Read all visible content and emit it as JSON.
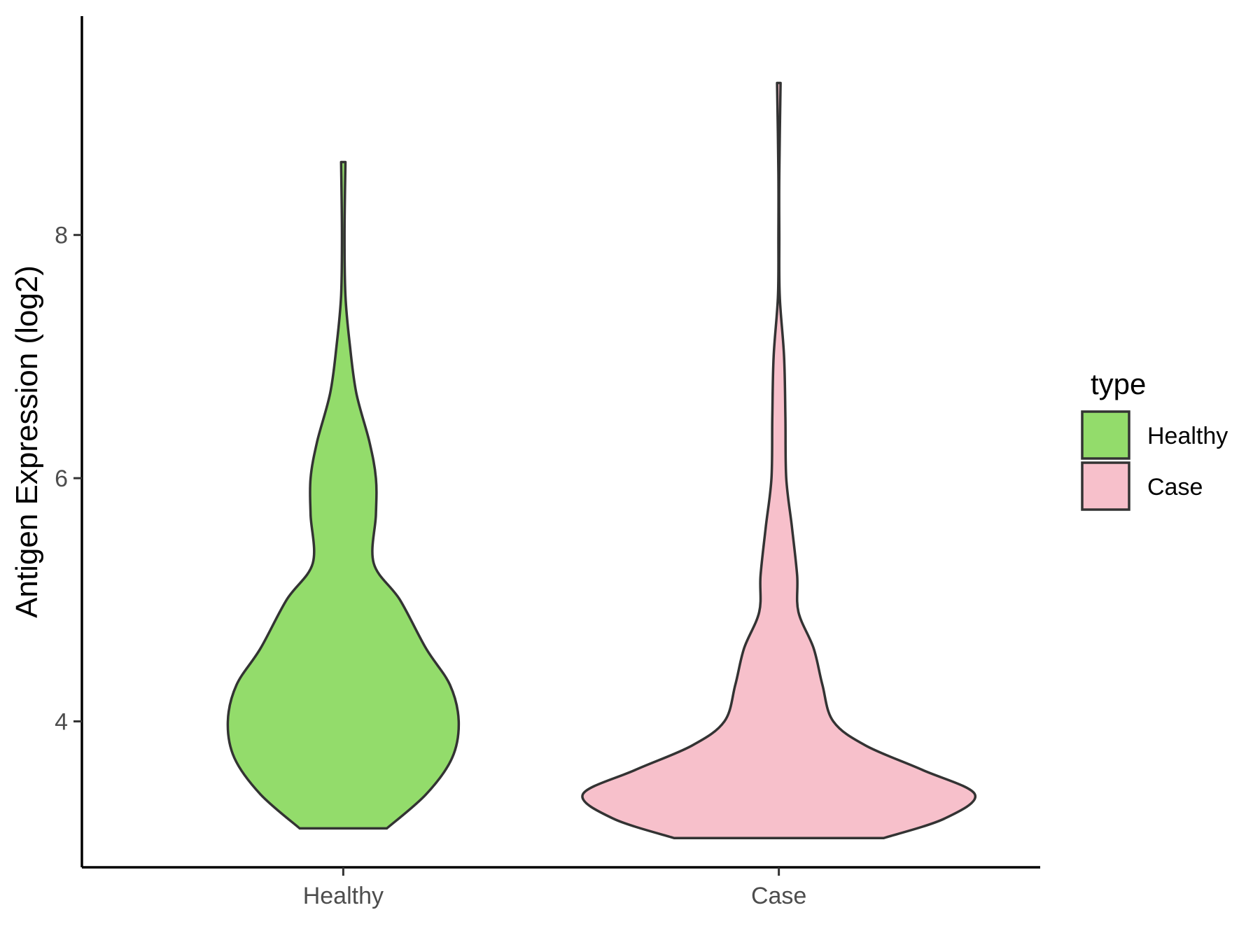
{
  "chart_data": {
    "type": "violin",
    "ylabel": "Antigen Expression (log2)",
    "xlabel": "",
    "categories": [
      "Healthy",
      "Case"
    ],
    "y_ticks": [
      "4",
      "6",
      "8"
    ],
    "ylim": [
      2.8,
      9.8
    ],
    "grid": false,
    "legend": {
      "title": "type",
      "position": "right",
      "entries": [
        {
          "label": "Healthy",
          "color": "#93dc6b"
        },
        {
          "label": "Case",
          "color": "#f7c0cb"
        }
      ]
    },
    "series": [
      {
        "name": "Healthy",
        "color": "#93dc6b",
        "y_min": 3.12,
        "y_max": 8.6,
        "density_profile": [
          {
            "y": 3.12,
            "half_width": 0.1
          },
          {
            "y": 3.4,
            "half_width": 0.19
          },
          {
            "y": 3.7,
            "half_width": 0.25
          },
          {
            "y": 4.0,
            "half_width": 0.265
          },
          {
            "y": 4.3,
            "half_width": 0.245
          },
          {
            "y": 4.6,
            "half_width": 0.19
          },
          {
            "y": 5.0,
            "half_width": 0.13
          },
          {
            "y": 5.3,
            "half_width": 0.07
          },
          {
            "y": 5.7,
            "half_width": 0.075
          },
          {
            "y": 6.0,
            "half_width": 0.075
          },
          {
            "y": 6.3,
            "half_width": 0.06
          },
          {
            "y": 6.7,
            "half_width": 0.03
          },
          {
            "y": 7.1,
            "half_width": 0.015
          },
          {
            "y": 7.5,
            "half_width": 0.005
          },
          {
            "y": 8.0,
            "half_width": 0.003
          },
          {
            "y": 8.6,
            "half_width": 0.005
          }
        ]
      },
      {
        "name": "Case",
        "color": "#f7c0cb",
        "y_min": 3.04,
        "y_max": 9.25,
        "density_profile": [
          {
            "y": 3.04,
            "half_width": 0.24
          },
          {
            "y": 3.2,
            "half_width": 0.38
          },
          {
            "y": 3.4,
            "half_width": 0.45
          },
          {
            "y": 3.6,
            "half_width": 0.33
          },
          {
            "y": 3.8,
            "half_width": 0.2
          },
          {
            "y": 4.0,
            "half_width": 0.125
          },
          {
            "y": 4.3,
            "half_width": 0.1
          },
          {
            "y": 4.6,
            "half_width": 0.08
          },
          {
            "y": 4.9,
            "half_width": 0.045
          },
          {
            "y": 5.2,
            "half_width": 0.042
          },
          {
            "y": 5.6,
            "half_width": 0.03
          },
          {
            "y": 6.0,
            "half_width": 0.017
          },
          {
            "y": 6.5,
            "half_width": 0.015
          },
          {
            "y": 7.0,
            "half_width": 0.012
          },
          {
            "y": 7.5,
            "half_width": 0.002
          },
          {
            "y": 8.0,
            "half_width": 0.001
          },
          {
            "y": 8.5,
            "half_width": 0.001
          },
          {
            "y": 9.25,
            "half_width": 0.004
          }
        ]
      }
    ]
  }
}
